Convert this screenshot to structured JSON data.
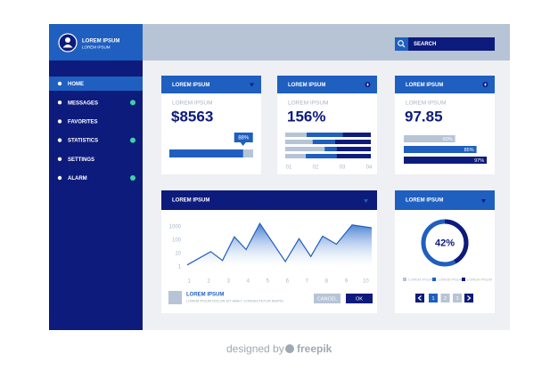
{
  "sidebar": {
    "user": {
      "name": "LOREM IPSUM",
      "subtitle": "LOREM IPSUM"
    },
    "menu": [
      {
        "label": "HOME",
        "active": true,
        "badge": false
      },
      {
        "label": "MESSAGES",
        "active": false,
        "badge": true
      },
      {
        "label": "FAVORITES",
        "active": false,
        "badge": false
      },
      {
        "label": "STATISTICS",
        "active": false,
        "badge": true
      },
      {
        "label": "SETTINGS",
        "active": false,
        "badge": false
      },
      {
        "label": "ALARM",
        "active": false,
        "badge": true
      }
    ]
  },
  "topbar": {
    "search": "SEARCH"
  },
  "stat_cards": [
    {
      "header": "LOREM IPSUM",
      "subtitle": "LOREM IPSUM",
      "value": "$8563",
      "progress": {
        "value": 88,
        "label": "88%"
      }
    },
    {
      "header": "LOREM IPSUM",
      "subtitle": "LOREM IPSUM",
      "value": "156%",
      "stack": {
        "colors": [
          "#b6c4d6",
          "#1f5fbf",
          "#0d1b7c"
        ],
        "rows": [
          [
            25,
            42,
            33
          ],
          [
            32,
            26,
            42
          ],
          [
            46,
            14,
            40
          ],
          [
            24,
            36,
            40
          ]
        ],
        "ticks": [
          "01",
          "02",
          "03",
          "04"
        ]
      }
    },
    {
      "header": "LOREM IPSUM",
      "subtitle": "LOREM IPSUM",
      "value": "97.85",
      "bars": [
        {
          "value": 60,
          "label": "60%",
          "color": "#b6c4d6"
        },
        {
          "value": 85,
          "label": "85%",
          "color": "#1f5fbf"
        },
        {
          "value": 97,
          "label": "97%",
          "color": "#0d1b7c"
        }
      ]
    }
  ],
  "chart_data": {
    "type": "line",
    "title": "LOREM IPSUM",
    "x": [
      0.9,
      2.1,
      2.7,
      3.3,
      3.9,
      4.6,
      5.9,
      6.6,
      7.2,
      7.8,
      8.5,
      9.3,
      10.3
    ],
    "series": [
      {
        "color": "#1f5fbf",
        "values": [
          1.4,
          14,
          3,
          180,
          20,
          1800,
          2.5,
          130,
          6,
          200,
          50,
          1400,
          850
        ]
      }
    ],
    "xlim": [
      0.9,
      10.3
    ],
    "xticks": [
      1,
      2,
      3,
      4,
      5,
      6,
      7,
      8,
      9,
      10
    ],
    "ylim": [
      1,
      2000
    ],
    "yticks": [
      1,
      10,
      100,
      1000
    ],
    "log_y": true,
    "area": true
  },
  "chart_card": {
    "legend_title": "LOREM IPSUM",
    "legend_text": "LOREM IPSUM DOLOR SIT AMET, CONSECTETUR ADIPIS",
    "buttons": [
      "CANCEL",
      "OK"
    ]
  },
  "donut_card": {
    "header": "LOREM IPSUM",
    "donut": {
      "value": 42,
      "label": "42%",
      "color": "#0d1b7c",
      "track": "#1f5fbf"
    },
    "legend": [
      {
        "label": "LOREM IPSUM",
        "color": "#b6c4d6"
      },
      {
        "label": "LOREM IPSUM",
        "color": "#1f5fbf"
      },
      {
        "label": "LOREM IPSUM",
        "color": "#0d1b7c"
      }
    ],
    "pages": [
      "1",
      "2",
      "3"
    ]
  },
  "footer": {
    "designed_by": "designed by",
    "brand": "freepik"
  }
}
